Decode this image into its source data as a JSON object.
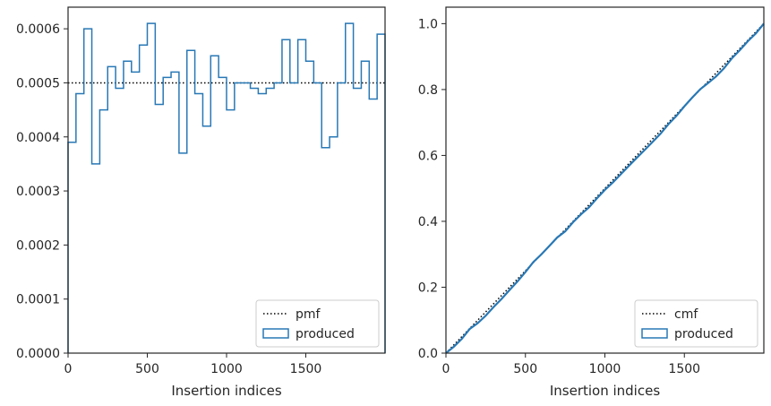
{
  "chart_data": [
    {
      "type": "step",
      "xlabel": "Insertion indices",
      "ylabel": "",
      "xlim": [
        0,
        2000
      ],
      "ylim": [
        0,
        0.00064
      ],
      "xticks": [
        0,
        500,
        1000,
        1500
      ],
      "xtick_labels": [
        "0",
        "500",
        "1000",
        "1500"
      ],
      "yticks": [
        0,
        0.0001,
        0.0002,
        0.0003,
        0.0004,
        0.0005,
        0.0006
      ],
      "ytick_labels": [
        "0.0000",
        "0.0001",
        "0.0002",
        "0.0003",
        "0.0004",
        "0.0005",
        "0.0006"
      ],
      "legend": {
        "placement": "lower-right",
        "entries": [
          "pmf",
          "produced"
        ]
      },
      "series": [
        {
          "name": "pmf",
          "style": "dotted",
          "color": "#000000",
          "x": [
            0,
            2000
          ],
          "values": [
            0.0005,
            0.0005
          ]
        },
        {
          "name": "produced",
          "style": "step-histogram",
          "color": "#2878b5",
          "bin_width": 50,
          "bin_starts": [
            0,
            50,
            100,
            150,
            200,
            250,
            300,
            350,
            400,
            450,
            500,
            550,
            600,
            650,
            700,
            750,
            800,
            850,
            900,
            950,
            1000,
            1050,
            1100,
            1150,
            1200,
            1250,
            1300,
            1350,
            1400,
            1450,
            1500,
            1550,
            1600,
            1650,
            1700,
            1750,
            1800,
            1850,
            1900,
            1950
          ],
          "values": [
            0.00039,
            0.00048,
            0.0006,
            0.00035,
            0.00045,
            0.00053,
            0.00049,
            0.00054,
            0.00052,
            0.00057,
            0.00061,
            0.00046,
            0.00051,
            0.00052,
            0.00037,
            0.00056,
            0.00048,
            0.00042,
            0.00055,
            0.00051,
            0.00045,
            0.0005,
            0.0005,
            0.00049,
            0.00048,
            0.00049,
            0.0005,
            0.00058,
            0.0005,
            0.00058,
            0.00054,
            0.0005,
            0.00038,
            0.0004,
            0.0005,
            0.00061,
            0.00049,
            0.00054,
            0.00047,
            0.00059
          ]
        }
      ]
    },
    {
      "type": "line",
      "xlabel": "Insertion indices",
      "ylabel": "",
      "xlim": [
        0,
        2000
      ],
      "ylim": [
        0,
        1.05
      ],
      "xticks": [
        0,
        500,
        1000,
        1500
      ],
      "xtick_labels": [
        "0",
        "500",
        "1000",
        "1500"
      ],
      "yticks": [
        0,
        0.2,
        0.4,
        0.6,
        0.8,
        1.0
      ],
      "ytick_labels": [
        "0.0",
        "0.2",
        "0.4",
        "0.6",
        "0.8",
        "1.0"
      ],
      "legend": {
        "placement": "lower-right",
        "entries": [
          "cmf",
          "produced"
        ]
      },
      "series": [
        {
          "name": "cmf",
          "style": "dotted",
          "color": "#000000",
          "x": [
            0,
            2000
          ],
          "values": [
            0,
            1.0
          ]
        },
        {
          "name": "produced",
          "style": "line",
          "color": "#2878b5",
          "x": [
            0,
            50,
            100,
            150,
            200,
            250,
            300,
            350,
            400,
            450,
            500,
            550,
            600,
            650,
            700,
            750,
            800,
            850,
            900,
            950,
            1000,
            1050,
            1100,
            1150,
            1200,
            1250,
            1300,
            1350,
            1400,
            1450,
            1500,
            1550,
            1600,
            1650,
            1700,
            1750,
            1800,
            1850,
            1900,
            1950,
            2000
          ],
          "values": [
            0,
            0.0195,
            0.0435,
            0.0735,
            0.091,
            0.1135,
            0.14,
            0.1645,
            0.1915,
            0.2175,
            0.246,
            0.2765,
            0.2995,
            0.325,
            0.351,
            0.3695,
            0.3975,
            0.4215,
            0.4425,
            0.47,
            0.4955,
            0.518,
            0.543,
            0.568,
            0.5925,
            0.6165,
            0.641,
            0.666,
            0.695,
            0.72,
            0.749,
            0.776,
            0.801,
            0.82,
            0.84,
            0.865,
            0.8955,
            0.92,
            0.947,
            0.9705,
            1.0
          ]
        }
      ]
    }
  ]
}
